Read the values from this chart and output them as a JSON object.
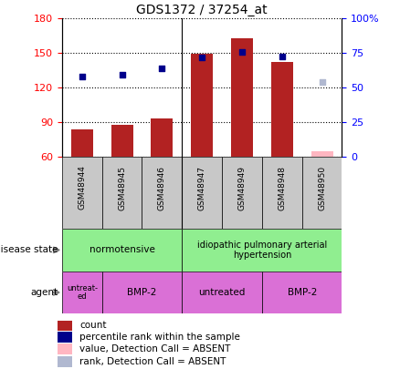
{
  "title": "GDS1372 / 37254_at",
  "samples": [
    "GSM48944",
    "GSM48945",
    "GSM48946",
    "GSM48947",
    "GSM48949",
    "GSM48948",
    "GSM48950"
  ],
  "bar_values": [
    84,
    88,
    93,
    149,
    163,
    142,
    65
  ],
  "bar_colors": [
    "#b22222",
    "#b22222",
    "#b22222",
    "#b22222",
    "#b22222",
    "#b22222",
    "#ffb6c1"
  ],
  "dot_values": [
    130,
    131,
    137,
    146,
    151,
    147,
    125
  ],
  "dot_colors": [
    "#00008b",
    "#00008b",
    "#00008b",
    "#00008b",
    "#00008b",
    "#00008b",
    "#b0b8d0"
  ],
  "ylim_left": [
    60,
    180
  ],
  "ylim_right": [
    0,
    100
  ],
  "yticks_left": [
    60,
    90,
    120,
    150,
    180
  ],
  "yticks_right": [
    0,
    25,
    50,
    75,
    100
  ],
  "ytick_labels_right": [
    "0",
    "25",
    "50",
    "75",
    "100%"
  ],
  "legend_items": [
    {
      "label": "count",
      "color": "#b22222"
    },
    {
      "label": "percentile rank within the sample",
      "color": "#00008b"
    },
    {
      "label": "value, Detection Call = ABSENT",
      "color": "#ffb6c1"
    },
    {
      "label": "rank, Detection Call = ABSENT",
      "color": "#b0b8d0"
    }
  ],
  "normotensive_color": "#90ee90",
  "iph_color": "#90ee90",
  "agent_color": "#da70d6",
  "sample_label_bg": "#c8c8c8",
  "separator_col": "#000000",
  "grid_color": "#000000"
}
